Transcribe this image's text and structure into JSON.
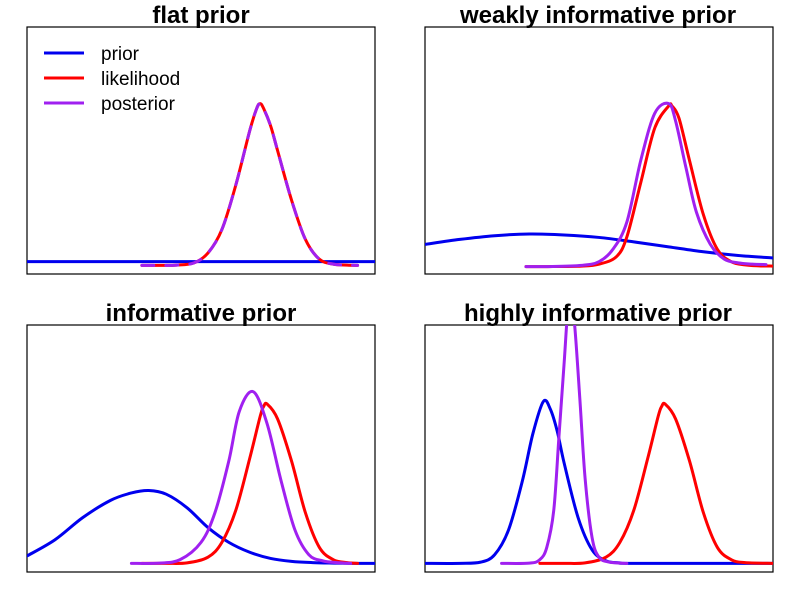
{
  "legend": {
    "placement": "top-left",
    "panel": 0,
    "items": [
      {
        "label": "prior",
        "color": "#0000ee"
      },
      {
        "label": "likelihood",
        "color": "#ff0000"
      },
      {
        "label": "posterior",
        "color": "#a020f0"
      }
    ]
  },
  "chart_data": [
    {
      "type": "line",
      "title": "flat prior",
      "xlabel": "",
      "ylabel": "",
      "xlim": [
        0,
        1
      ],
      "ylim": [
        0,
        1
      ],
      "grid": false,
      "axes_ticks": false,
      "series": [
        {
          "name": "prior",
          "color": "#0000ee",
          "x": [
            0.0,
            1.0
          ],
          "y": [
            0.05,
            0.05
          ]
        },
        {
          "name": "likelihood",
          "color": "#ff0000",
          "dashed": false,
          "x": [
            0.33,
            0.38,
            0.43,
            0.48,
            0.52,
            0.56,
            0.6,
            0.64,
            0.66,
            0.67,
            0.68,
            0.7,
            0.72,
            0.76,
            0.8,
            0.84,
            0.88,
            0.92,
            0.95
          ],
          "y": [
            0.035,
            0.035,
            0.036,
            0.045,
            0.085,
            0.18,
            0.36,
            0.58,
            0.67,
            0.69,
            0.67,
            0.6,
            0.5,
            0.3,
            0.14,
            0.06,
            0.04,
            0.036,
            0.035
          ]
        },
        {
          "name": "posterior",
          "color": "#a020f0",
          "dashed": true,
          "x": [
            0.33,
            0.38,
            0.43,
            0.48,
            0.52,
            0.56,
            0.6,
            0.64,
            0.66,
            0.67,
            0.68,
            0.7,
            0.72,
            0.76,
            0.8,
            0.84,
            0.88,
            0.92,
            0.95
          ],
          "y": [
            0.035,
            0.035,
            0.036,
            0.045,
            0.085,
            0.18,
            0.36,
            0.58,
            0.67,
            0.69,
            0.67,
            0.6,
            0.5,
            0.3,
            0.14,
            0.06,
            0.04,
            0.036,
            0.035
          ]
        }
      ]
    },
    {
      "type": "line",
      "title": "weakly informative prior",
      "xlabel": "",
      "ylabel": "",
      "xlim": [
        0,
        1
      ],
      "ylim": [
        0,
        1
      ],
      "grid": false,
      "axes_ticks": false,
      "series": [
        {
          "name": "prior",
          "color": "#0000ee",
          "x": [
            0.0,
            0.1,
            0.2,
            0.3,
            0.4,
            0.5,
            0.6,
            0.7,
            0.8,
            0.9,
            1.0
          ],
          "y": [
            0.12,
            0.14,
            0.155,
            0.162,
            0.158,
            0.148,
            0.13,
            0.11,
            0.09,
            0.075,
            0.065
          ]
        },
        {
          "name": "likelihood",
          "color": "#ff0000",
          "x": [
            0.29,
            0.35,
            0.45,
            0.5,
            0.55,
            0.58,
            0.62,
            0.66,
            0.7,
            0.71,
            0.73,
            0.76,
            0.8,
            0.84,
            0.88,
            0.92,
            0.96,
            1.0
          ],
          "y": [
            0.03,
            0.03,
            0.032,
            0.04,
            0.07,
            0.15,
            0.37,
            0.59,
            0.68,
            0.68,
            0.63,
            0.46,
            0.24,
            0.1,
            0.05,
            0.037,
            0.033,
            0.032
          ]
        },
        {
          "name": "posterior",
          "color": "#a020f0",
          "x": [
            0.29,
            0.35,
            0.45,
            0.5,
            0.54,
            0.58,
            0.62,
            0.66,
            0.7,
            0.72,
            0.75,
            0.78,
            0.82,
            0.86,
            0.9,
            0.94,
            0.98
          ],
          "y": [
            0.03,
            0.03,
            0.035,
            0.05,
            0.1,
            0.21,
            0.46,
            0.65,
            0.69,
            0.62,
            0.43,
            0.25,
            0.12,
            0.06,
            0.045,
            0.04,
            0.038
          ]
        }
      ]
    },
    {
      "type": "line",
      "title": "informative prior",
      "xlabel": "",
      "ylabel": "",
      "xlim": [
        0,
        1
      ],
      "ylim": [
        0,
        1
      ],
      "grid": false,
      "axes_ticks": false,
      "series": [
        {
          "name": "prior",
          "color": "#0000ee",
          "x": [
            0.0,
            0.08,
            0.16,
            0.24,
            0.3,
            0.35,
            0.4,
            0.46,
            0.52,
            0.58,
            0.64,
            0.7,
            0.76,
            0.82,
            0.88,
            0.94,
            1.0
          ],
          "y": [
            0.065,
            0.13,
            0.22,
            0.29,
            0.32,
            0.33,
            0.315,
            0.26,
            0.18,
            0.12,
            0.08,
            0.055,
            0.043,
            0.038,
            0.036,
            0.035,
            0.035
          ]
        },
        {
          "name": "likelihood",
          "color": "#ff0000",
          "x": [
            0.33,
            0.4,
            0.46,
            0.52,
            0.56,
            0.6,
            0.64,
            0.67,
            0.68,
            0.69,
            0.72,
            0.76,
            0.8,
            0.84,
            0.88,
            0.92,
            0.95
          ],
          "y": [
            0.035,
            0.035,
            0.037,
            0.06,
            0.12,
            0.25,
            0.46,
            0.63,
            0.67,
            0.68,
            0.62,
            0.45,
            0.24,
            0.1,
            0.05,
            0.038,
            0.035
          ]
        },
        {
          "name": "posterior",
          "color": "#a020f0",
          "x": [
            0.3,
            0.38,
            0.44,
            0.5,
            0.54,
            0.58,
            0.61,
            0.65,
            0.69,
            0.73,
            0.77,
            0.81,
            0.85,
            0.89,
            0.93
          ],
          "y": [
            0.035,
            0.036,
            0.05,
            0.12,
            0.24,
            0.45,
            0.65,
            0.73,
            0.6,
            0.37,
            0.17,
            0.07,
            0.045,
            0.038,
            0.035
          ]
        }
      ]
    },
    {
      "type": "line",
      "title": "highly informative prior",
      "xlabel": "",
      "ylabel": "",
      "xlim": [
        0,
        1
      ],
      "ylim": [
        0,
        1
      ],
      "grid": false,
      "axes_ticks": false,
      "series": [
        {
          "name": "prior",
          "color": "#0000ee",
          "x": [
            0.0,
            0.1,
            0.16,
            0.2,
            0.24,
            0.28,
            0.31,
            0.34,
            0.36,
            0.38,
            0.4,
            0.44,
            0.48,
            0.52,
            0.56,
            0.6,
            1.0
          ],
          "y": [
            0.035,
            0.035,
            0.04,
            0.07,
            0.17,
            0.37,
            0.56,
            0.69,
            0.66,
            0.57,
            0.44,
            0.22,
            0.09,
            0.045,
            0.037,
            0.035,
            0.035
          ]
        },
        {
          "name": "likelihood",
          "color": "#ff0000",
          "x": [
            0.33,
            0.4,
            0.46,
            0.52,
            0.56,
            0.6,
            0.64,
            0.67,
            0.68,
            0.69,
            0.72,
            0.76,
            0.8,
            0.84,
            0.88,
            0.92,
            1.0
          ],
          "y": [
            0.035,
            0.035,
            0.037,
            0.06,
            0.12,
            0.25,
            0.46,
            0.63,
            0.67,
            0.68,
            0.62,
            0.45,
            0.24,
            0.1,
            0.05,
            0.038,
            0.035
          ]
        },
        {
          "name": "posterior",
          "color": "#a020f0",
          "x": [
            0.22,
            0.3,
            0.33,
            0.35,
            0.37,
            0.385,
            0.4,
            0.41,
            0.42,
            0.43,
            0.445,
            0.46,
            0.48,
            0.5,
            0.53,
            0.58
          ],
          "y": [
            0.035,
            0.036,
            0.05,
            0.1,
            0.25,
            0.55,
            0.85,
            1.05,
            1.08,
            1.0,
            0.7,
            0.38,
            0.14,
            0.06,
            0.04,
            0.035
          ]
        }
      ]
    }
  ]
}
